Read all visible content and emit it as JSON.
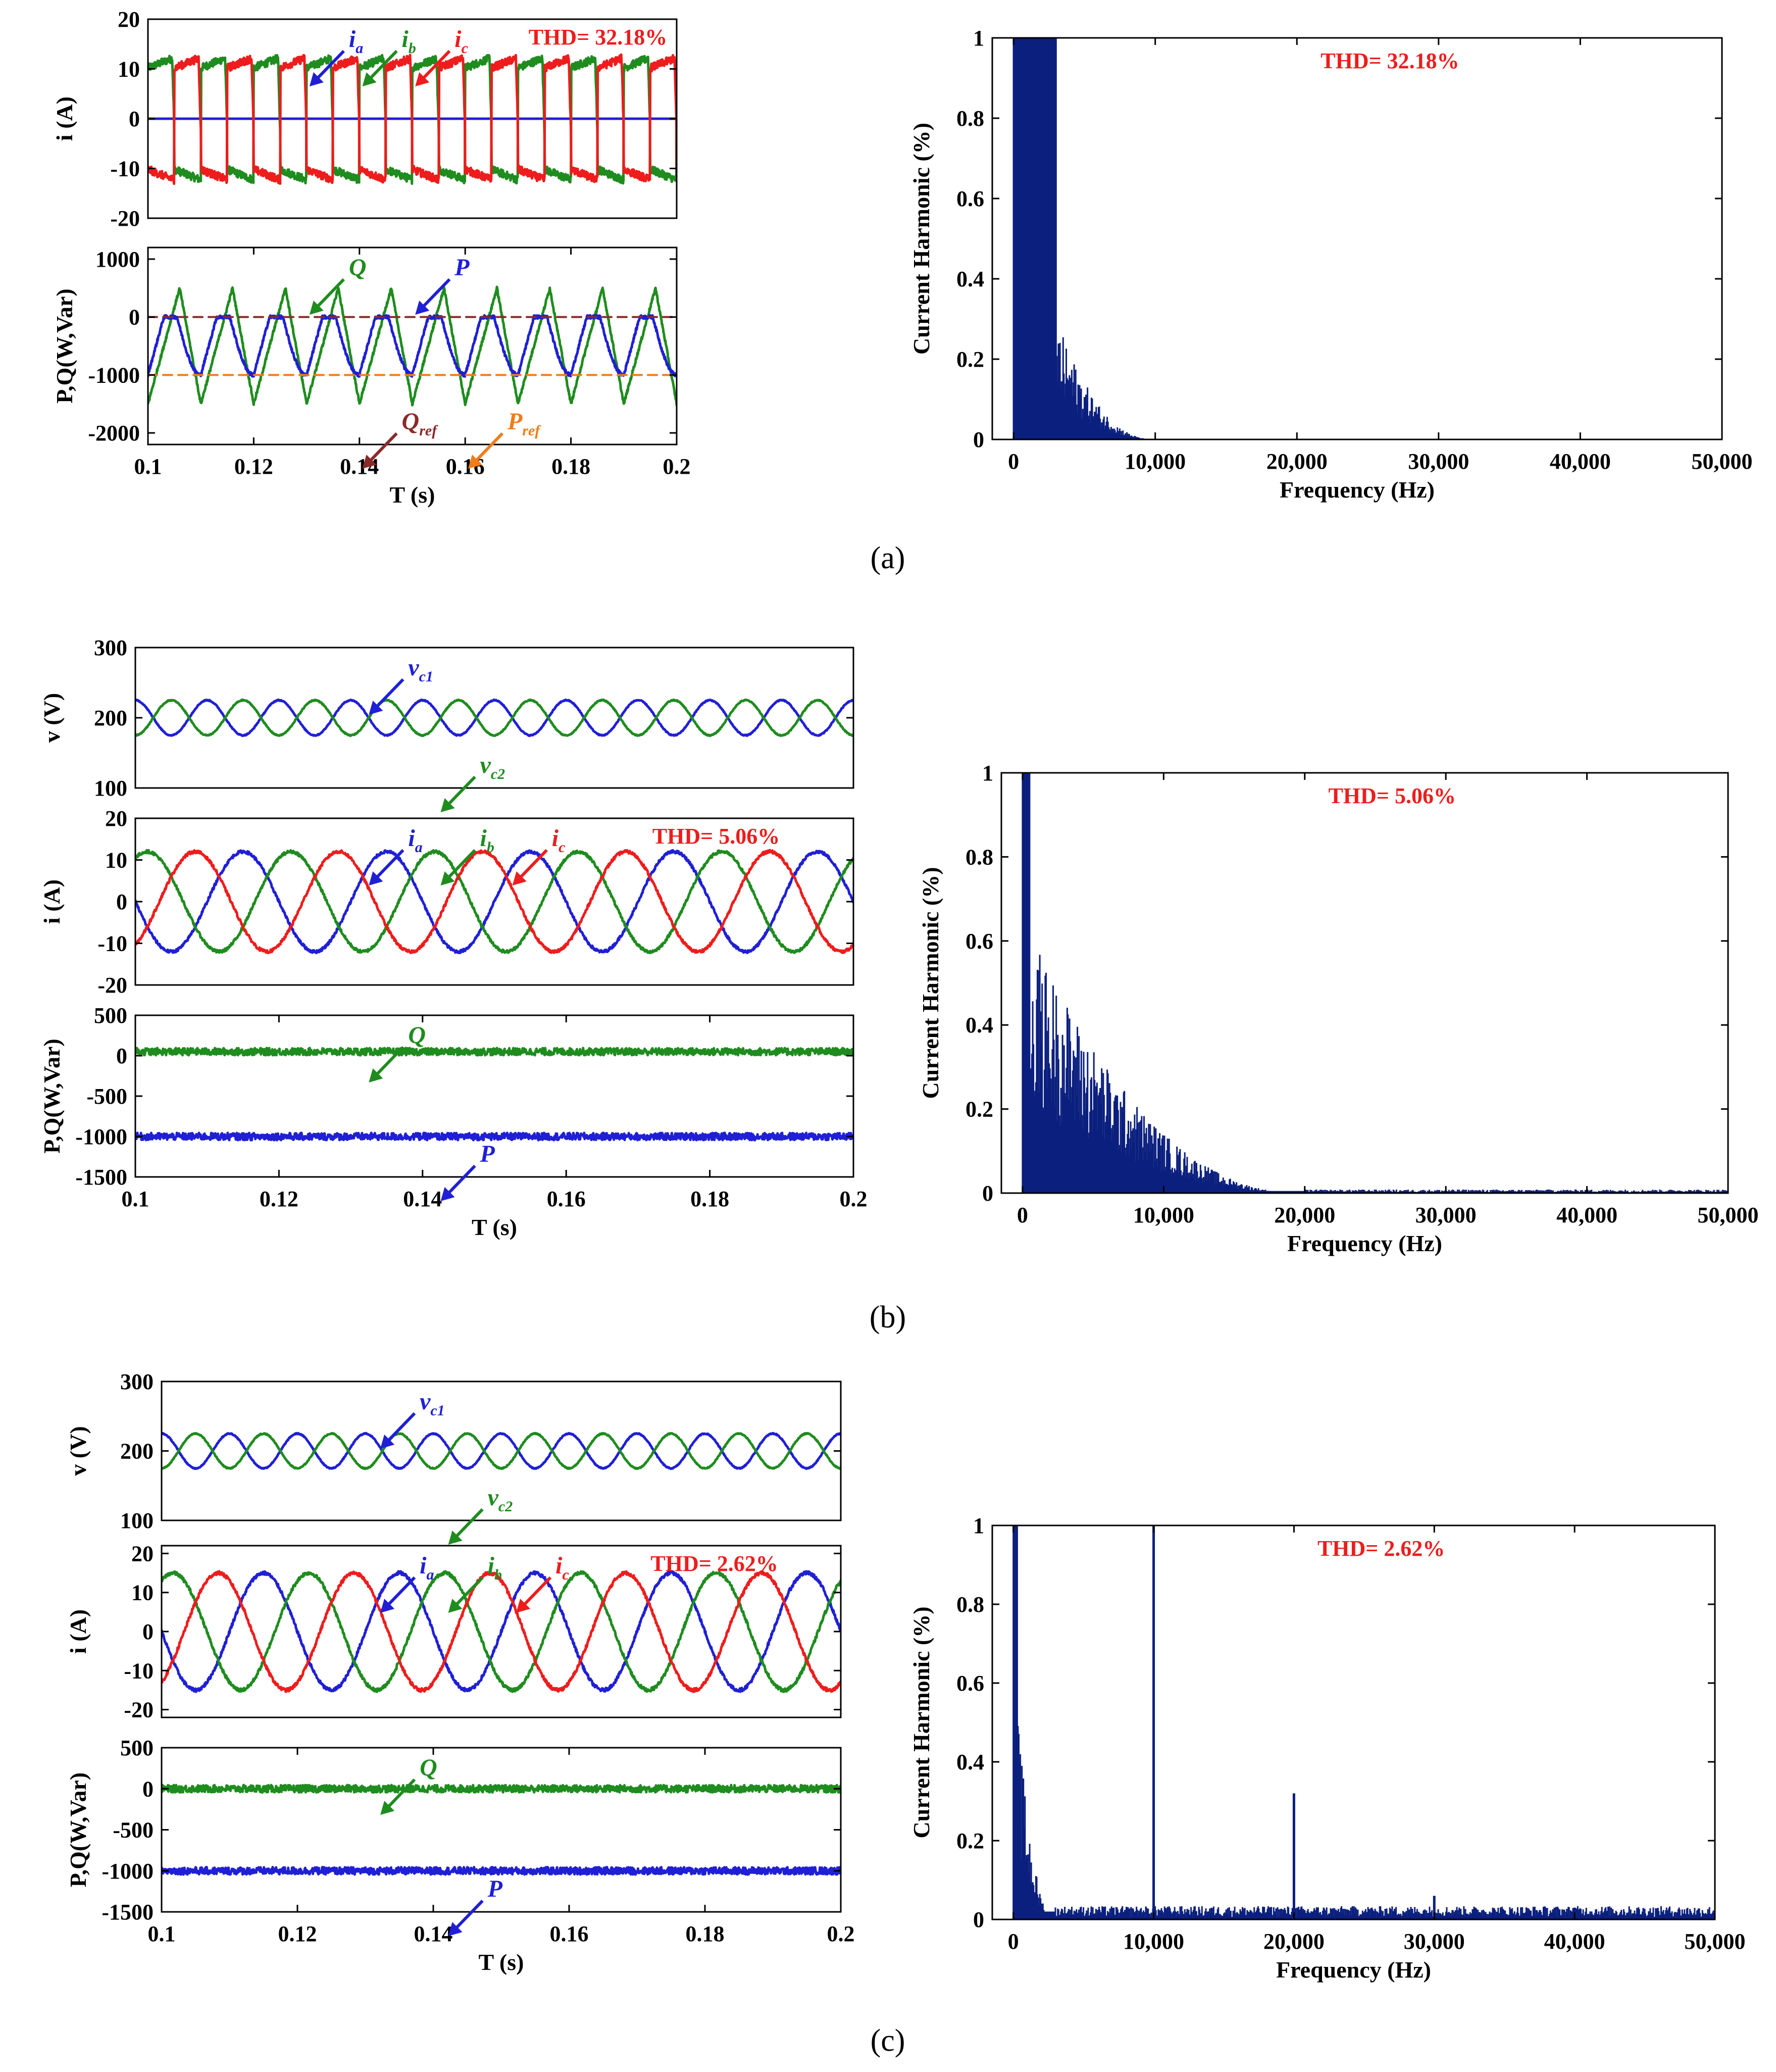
{
  "colors": {
    "blue": "#1f1fd6",
    "green": "#1e8c1e",
    "red": "#ee1c1c",
    "brown": "#8b2a2a",
    "orange": "#f07c1a",
    "thd": "#ee1c1c",
    "spectrum": "#0b1f7e",
    "axis": "#000000"
  },
  "panel_labels": {
    "a": "(a)",
    "b": "(b)",
    "c": "(c)"
  },
  "chart_data": [
    {
      "id": "a-current",
      "panel": "a",
      "type": "line",
      "ylabel": "i (A)",
      "xlabel": "",
      "xlim": [
        0.1,
        0.2
      ],
      "ylim": [
        -20,
        20
      ],
      "xticks": [],
      "yticks": [
        "20",
        "10",
        "0",
        "-10",
        "-20"
      ],
      "yticks_values": [
        20,
        10,
        0,
        -10,
        -20
      ],
      "thd": "THD= 32.18%",
      "series": [
        {
          "name": "ia",
          "color": "blue",
          "waveform": "flat",
          "amplitude": 0,
          "offset": 0,
          "phase_deg": 0
        },
        {
          "name": "ib",
          "color": "green",
          "waveform": "quasi-square",
          "amplitude": 12,
          "offset": 0,
          "phase_deg": 0
        },
        {
          "name": "ic",
          "color": "red",
          "waveform": "quasi-square",
          "amplitude": 12,
          "offset": 0,
          "phase_deg": 180
        }
      ],
      "labels": [
        {
          "text": "i",
          "sub": "a",
          "color": "blue"
        },
        {
          "text": "i",
          "sub": "b",
          "color": "green"
        },
        {
          "text": "i",
          "sub": "c",
          "color": "red"
        }
      ]
    },
    {
      "id": "a-power",
      "panel": "a",
      "type": "line",
      "ylabel": "P,Q(W,Var)",
      "xlabel": "T (s)",
      "xlim": [
        0.1,
        0.2
      ],
      "ylim": [
        -2200,
        1200
      ],
      "xticks": [
        "0.1",
        "0.12",
        "0.14",
        "0.16",
        "0.18",
        "0.2"
      ],
      "xticks_values": [
        0.1,
        0.12,
        0.14,
        0.16,
        0.18,
        0.2
      ],
      "yticks": [
        "1000",
        "0",
        "-1000",
        "-2000"
      ],
      "yticks_values": [
        1000,
        0,
        -1000,
        -2000
      ],
      "series": [
        {
          "name": "Q",
          "color": "green",
          "waveform": "sawtooth",
          "amplitude": 1000,
          "offset": -500,
          "phase_deg": 0
        },
        {
          "name": "P",
          "color": "blue",
          "waveform": "dip",
          "amplitude": 1000,
          "offset": -500,
          "phase_deg": 0
        },
        {
          "name": "Qref",
          "color": "brown",
          "waveform": "dashed",
          "value": 0
        },
        {
          "name": "Pref",
          "color": "orange",
          "waveform": "dashed",
          "value": -1000
        }
      ],
      "labels": [
        {
          "text": "Q",
          "sub": "",
          "color": "green"
        },
        {
          "text": "Q",
          "sub": "ref",
          "color": "brown"
        },
        {
          "text": "P",
          "sub": "",
          "color": "blue"
        },
        {
          "text": "P",
          "sub": "ref",
          "color": "orange"
        }
      ]
    },
    {
      "id": "a-spectrum",
      "panel": "a",
      "type": "bar",
      "ylabel": "Current Harmonic (%)",
      "xlabel": "Frequency (Hz)",
      "xlim": [
        -1500,
        50000
      ],
      "ylim": [
        0,
        1
      ],
      "xticks": [
        "0",
        "10,000",
        "20,000",
        "30,000",
        "40,000",
        "50,000"
      ],
      "xticks_values": [
        0,
        10000,
        20000,
        30000,
        40000,
        50000
      ],
      "yticks": [
        "1",
        "0.8",
        "0.6",
        "0.4",
        "0.2",
        "0"
      ],
      "yticks_values": [
        1,
        0.8,
        0.6,
        0.4,
        0.2,
        0
      ],
      "thd": "THD= 32.18%",
      "spectrum": {
        "peak_region_hz": [
          0,
          3000
        ],
        "decay_to_hz": 10000,
        "floor": 0.0,
        "spikes": []
      }
    },
    {
      "id": "b-voltage",
      "panel": "b",
      "type": "line",
      "ylabel": "v (V)",
      "xlabel": "",
      "xlim": [
        0.1,
        0.2
      ],
      "ylim": [
        100,
        300
      ],
      "xticks": [],
      "yticks": [
        "300",
        "200",
        "100"
      ],
      "yticks_values": [
        300,
        200,
        100
      ],
      "series": [
        {
          "name": "vc1",
          "color": "blue",
          "waveform": "sine",
          "amplitude": 25,
          "offset": 200,
          "phase_deg": 90,
          "freq_hz": 100
        },
        {
          "name": "vc2",
          "color": "green",
          "waveform": "sine",
          "amplitude": 25,
          "offset": 200,
          "phase_deg": 270,
          "freq_hz": 100
        }
      ],
      "labels": [
        {
          "text": "v",
          "sub": "c1",
          "color": "blue"
        },
        {
          "text": "v",
          "sub": "c2",
          "color": "green"
        }
      ]
    },
    {
      "id": "b-current",
      "panel": "b",
      "type": "line",
      "ylabel": "i (A)",
      "xlabel": "",
      "xlim": [
        0.1,
        0.2
      ],
      "ylim": [
        -20,
        20
      ],
      "xticks": [],
      "yticks": [
        "20",
        "10",
        "0",
        "-10",
        "-20"
      ],
      "yticks_values": [
        20,
        10,
        0,
        -10,
        -20
      ],
      "thd": "THD= 5.06%",
      "series": [
        {
          "name": "ia",
          "color": "blue",
          "waveform": "sine",
          "amplitude": 12,
          "offset": 0,
          "phase_deg": 180,
          "freq_hz": 50
        },
        {
          "name": "ib",
          "color": "green",
          "waveform": "sine",
          "amplitude": 12,
          "offset": 0,
          "phase_deg": 60,
          "freq_hz": 50
        },
        {
          "name": "ic",
          "color": "red",
          "waveform": "sine",
          "amplitude": 12,
          "offset": 0,
          "phase_deg": -60,
          "freq_hz": 50
        }
      ],
      "labels": [
        {
          "text": "i",
          "sub": "a",
          "color": "blue"
        },
        {
          "text": "i",
          "sub": "b",
          "color": "green"
        },
        {
          "text": "i",
          "sub": "c",
          "color": "red"
        }
      ]
    },
    {
      "id": "b-power",
      "panel": "b",
      "type": "line",
      "ylabel": "P,Q(W,Var)",
      "xlabel": "T (s)",
      "xlim": [
        0.1,
        0.2
      ],
      "ylim": [
        -1500,
        500
      ],
      "xticks": [
        "0.1",
        "0.12",
        "0.14",
        "0.16",
        "0.18",
        "0.2"
      ],
      "xticks_values": [
        0.1,
        0.12,
        0.14,
        0.16,
        0.18,
        0.2
      ],
      "yticks": [
        "500",
        "0",
        "-500",
        "-1000",
        "-1500"
      ],
      "yticks_values": [
        500,
        0,
        -500,
        -1000,
        -1500
      ],
      "series": [
        {
          "name": "Q",
          "color": "green",
          "waveform": "noisy-flat",
          "value": 50
        },
        {
          "name": "P",
          "color": "blue",
          "waveform": "noisy-flat",
          "value": -1000
        }
      ],
      "labels": [
        {
          "text": "Q",
          "sub": "",
          "color": "green"
        },
        {
          "text": "P",
          "sub": "",
          "color": "blue"
        }
      ]
    },
    {
      "id": "b-spectrum",
      "panel": "b",
      "type": "bar",
      "ylabel": "Current Harmonic (%)",
      "xlabel": "Frequency (Hz)",
      "xlim": [
        -1500,
        50000
      ],
      "ylim": [
        0,
        1
      ],
      "xticks": [
        "0",
        "10,000",
        "20,000",
        "30,000",
        "40,000",
        "50,000"
      ],
      "xticks_values": [
        0,
        10000,
        20000,
        30000,
        40000,
        50000
      ],
      "yticks": [
        "1",
        "0.8",
        "0.6",
        "0.4",
        "0.2",
        "0"
      ],
      "yticks_values": [
        1,
        0.8,
        0.6,
        0.4,
        0.2,
        0
      ],
      "thd": "THD= 5.06%",
      "spectrum": {
        "peak_region_hz": [
          0,
          500
        ],
        "decay_to_hz": 20000,
        "floor": 0.005,
        "spikes": []
      }
    },
    {
      "id": "c-voltage",
      "panel": "c",
      "type": "line",
      "ylabel": "v (V)",
      "xlabel": "",
      "xlim": [
        0.1,
        0.2
      ],
      "ylim": [
        100,
        300
      ],
      "xticks": [],
      "yticks": [
        "300",
        "200",
        "100"
      ],
      "yticks_values": [
        300,
        200,
        100
      ],
      "series": [
        {
          "name": "vc1",
          "color": "blue",
          "waveform": "sine",
          "amplitude": 25,
          "offset": 200,
          "phase_deg": 90,
          "freq_hz": 100
        },
        {
          "name": "vc2",
          "color": "green",
          "waveform": "sine",
          "amplitude": 25,
          "offset": 200,
          "phase_deg": 270,
          "freq_hz": 100
        }
      ],
      "labels": [
        {
          "text": "v",
          "sub": "c1",
          "color": "blue"
        },
        {
          "text": "v",
          "sub": "c2",
          "color": "green"
        }
      ]
    },
    {
      "id": "c-current",
      "panel": "c",
      "type": "line",
      "ylabel": "i (A)",
      "xlabel": "",
      "xlim": [
        0.1,
        0.2
      ],
      "ylim": [
        -22,
        22
      ],
      "xticks": [],
      "yticks": [
        "20",
        "10",
        "0",
        "-10",
        "-20"
      ],
      "yticks_values": [
        20,
        10,
        0,
        -10,
        -20
      ],
      "thd": "THD= 2.62%",
      "series": [
        {
          "name": "ia",
          "color": "blue",
          "waveform": "sine",
          "amplitude": 15,
          "offset": 0,
          "phase_deg": 180,
          "freq_hz": 50
        },
        {
          "name": "ib",
          "color": "green",
          "waveform": "sine",
          "amplitude": 15,
          "offset": 0,
          "phase_deg": 60,
          "freq_hz": 50
        },
        {
          "name": "ic",
          "color": "red",
          "waveform": "sine",
          "amplitude": 15,
          "offset": 0,
          "phase_deg": -60,
          "freq_hz": 50
        }
      ],
      "labels": [
        {
          "text": "i",
          "sub": "a",
          "color": "blue"
        },
        {
          "text": "i",
          "sub": "b",
          "color": "green"
        },
        {
          "text": "i",
          "sub": "c",
          "color": "red"
        }
      ]
    },
    {
      "id": "c-power",
      "panel": "c",
      "type": "line",
      "ylabel": "P,Q(W,Var)",
      "xlabel": "T (s)",
      "xlim": [
        0.1,
        0.2
      ],
      "ylim": [
        -1500,
        500
      ],
      "xticks": [
        "0.1",
        "0.12",
        "0.14",
        "0.16",
        "0.18",
        "0.2"
      ],
      "xticks_values": [
        0.1,
        0.12,
        0.14,
        0.16,
        0.18,
        0.2
      ],
      "yticks": [
        "500",
        "0",
        "-500",
        "-1000",
        "-1500"
      ],
      "yticks_values": [
        500,
        0,
        -500,
        -1000,
        -1500
      ],
      "series": [
        {
          "name": "Q",
          "color": "green",
          "waveform": "noisy-flat",
          "value": 0
        },
        {
          "name": "P",
          "color": "blue",
          "waveform": "noisy-flat",
          "value": -1000
        }
      ],
      "labels": [
        {
          "text": "Q",
          "sub": "",
          "color": "green"
        },
        {
          "text": "P",
          "sub": "",
          "color": "blue"
        }
      ]
    },
    {
      "id": "c-spectrum",
      "panel": "c",
      "type": "bar",
      "ylabel": "Current Harmonic (%)",
      "xlabel": "Frequency (Hz)",
      "xlim": [
        -1500,
        50000
      ],
      "ylim": [
        0,
        1
      ],
      "xticks": [
        "0",
        "10,000",
        "20,000",
        "30,000",
        "40,000",
        "50,000"
      ],
      "xticks_values": [
        0,
        10000,
        20000,
        30000,
        40000,
        50000
      ],
      "yticks": [
        "1",
        "0.8",
        "0.6",
        "0.4",
        "0.2",
        "0"
      ],
      "yticks_values": [
        1,
        0.8,
        0.6,
        0.4,
        0.2,
        0
      ],
      "thd": "THD= 2.62%",
      "spectrum": {
        "peak_region_hz": [
          0,
          300
        ],
        "decay_to_hz": 3000,
        "floor": 0.02,
        "spikes": [
          {
            "x": 10000,
            "v": 1.0
          },
          {
            "x": 20000,
            "v": 0.32
          },
          {
            "x": 30000,
            "v": 0.06
          },
          {
            "x": 40000,
            "v": 0.03
          }
        ]
      }
    }
  ]
}
